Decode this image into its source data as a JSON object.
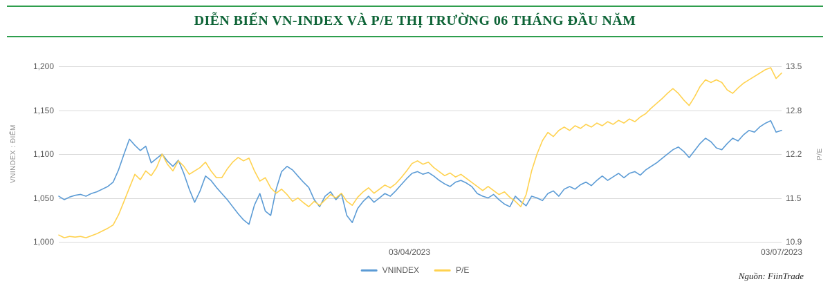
{
  "header": {
    "title": "DIỄN BIẾN VN-INDEX VÀ P/E THỊ TRƯỜNG 06 THÁNG ĐẦU NĂM"
  },
  "source": "Nguồn: FiinTrade",
  "chart_data": {
    "type": "line",
    "title": "DIỄN BIẾN VN-INDEX VÀ P/E THỊ TRƯỜNG 06 THÁNG ĐẦU NĂM",
    "grid": true,
    "legend_position": "bottom-center",
    "left_axis": {
      "label": "VNINDEX : ĐIỂM",
      "range": [
        1000,
        1200
      ],
      "ticks": [
        "1,000",
        "1,050",
        "1,100",
        "1,150",
        "1,200"
      ],
      "tick_values": [
        1000,
        1050,
        1100,
        1150,
        1200
      ]
    },
    "right_axis": {
      "label": "P/E",
      "range": [
        10.9,
        13.5
      ],
      "ticks": [
        "10.9",
        "11.5",
        "12.2",
        "12.8",
        "13.5"
      ],
      "tick_values": [
        10.9,
        11.5,
        12.2,
        12.8,
        13.5
      ]
    },
    "x_axis": {
      "labels": [
        {
          "text": "03/04/2023",
          "fraction": 0.48
        },
        {
          "text": "03/07/2023",
          "fraction": 1.0
        }
      ]
    },
    "legend": [
      {
        "label": "VNINDEX",
        "color": "#5b9bd5"
      },
      {
        "label": "P/E",
        "color": "#ffd24f"
      }
    ],
    "series": [
      {
        "name": "VNINDEX",
        "axis": "left",
        "color": "#5b9bd5",
        "values": [
          1052,
          1048,
          1051,
          1053,
          1054,
          1052,
          1055,
          1057,
          1060,
          1063,
          1068,
          1082,
          1100,
          1117,
          1110,
          1104,
          1109,
          1090,
          1095,
          1100,
          1092,
          1086,
          1093,
          1078,
          1060,
          1045,
          1058,
          1075,
          1070,
          1062,
          1055,
          1048,
          1040,
          1032,
          1025,
          1020,
          1042,
          1055,
          1035,
          1030,
          1060,
          1080,
          1086,
          1082,
          1075,
          1068,
          1062,
          1048,
          1040,
          1052,
          1057,
          1048,
          1055,
          1030,
          1022,
          1038,
          1046,
          1052,
          1045,
          1050,
          1055,
          1052,
          1058,
          1065,
          1072,
          1078,
          1080,
          1077,
          1079,
          1075,
          1070,
          1066,
          1063,
          1068,
          1070,
          1067,
          1063,
          1055,
          1052,
          1050,
          1054,
          1048,
          1043,
          1040,
          1052,
          1046,
          1041,
          1052,
          1050,
          1047,
          1055,
          1058,
          1052,
          1060,
          1063,
          1060,
          1065,
          1068,
          1064,
          1070,
          1075,
          1070,
          1074,
          1078,
          1073,
          1078,
          1080,
          1076,
          1082,
          1086,
          1090,
          1095,
          1100,
          1105,
          1108,
          1103,
          1096,
          1104,
          1112,
          1118,
          1114,
          1107,
          1105,
          1112,
          1118,
          1115,
          1122,
          1127,
          1125,
          1131,
          1135,
          1138,
          1125,
          1127
        ]
      },
      {
        "name": "P/E",
        "axis": "right",
        "color": "#ffd24f",
        "values": [
          11.0,
          10.96,
          10.98,
          10.97,
          10.98,
          10.96,
          10.99,
          11.02,
          11.06,
          11.1,
          11.15,
          11.3,
          11.5,
          11.7,
          11.9,
          11.82,
          11.95,
          11.88,
          12.0,
          12.2,
          12.05,
          11.95,
          12.1,
          12.02,
          11.9,
          11.95,
          12.0,
          12.08,
          11.95,
          11.85,
          11.85,
          11.98,
          12.08,
          12.15,
          12.1,
          12.14,
          11.95,
          11.8,
          11.85,
          11.7,
          11.62,
          11.68,
          11.6,
          11.5,
          11.55,
          11.48,
          11.42,
          11.5,
          11.44,
          11.52,
          11.6,
          11.55,
          11.62,
          11.5,
          11.44,
          11.56,
          11.64,
          11.7,
          11.62,
          11.68,
          11.74,
          11.7,
          11.76,
          11.85,
          11.95,
          12.06,
          12.1,
          12.05,
          12.08,
          12.0,
          11.94,
          11.88,
          11.92,
          11.86,
          11.9,
          11.84,
          11.78,
          11.72,
          11.66,
          11.72,
          11.66,
          11.6,
          11.64,
          11.56,
          11.5,
          11.42,
          11.6,
          11.95,
          12.2,
          12.4,
          12.52,
          12.46,
          12.55,
          12.6,
          12.55,
          12.62,
          12.58,
          12.64,
          12.6,
          12.66,
          12.62,
          12.68,
          12.64,
          12.7,
          12.66,
          12.72,
          12.68,
          12.75,
          12.8,
          12.88,
          12.95,
          13.02,
          13.1,
          13.17,
          13.1,
          13.0,
          12.92,
          13.05,
          13.2,
          13.3,
          13.26,
          13.3,
          13.26,
          13.15,
          13.1,
          13.18,
          13.25,
          13.3,
          13.35,
          13.4,
          13.45,
          13.48,
          13.32,
          13.4
        ]
      }
    ]
  }
}
